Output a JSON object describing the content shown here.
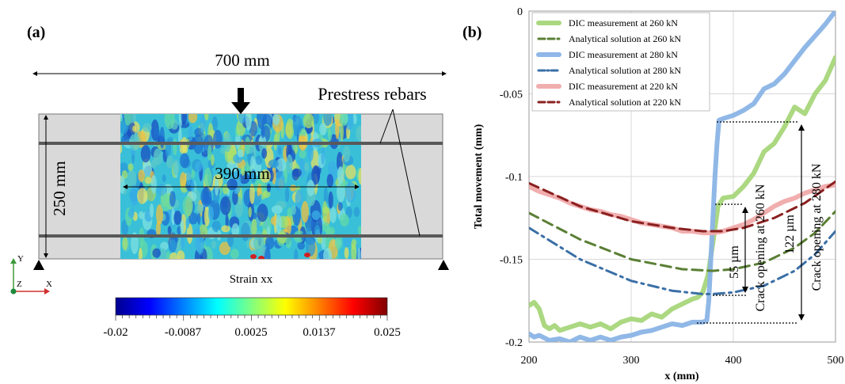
{
  "panel_a": {
    "label": "(a)",
    "width_label": "700 mm",
    "height_label": "250 mm",
    "inner_width_label": "390 mm",
    "rebar_label": "Prestress rebars",
    "colorbar_title": "Strain xx",
    "colorbar_ticks": [
      "-0.02",
      "-0.0087",
      "0.0025",
      "0.0137",
      "0.025"
    ],
    "axis_y": "Y",
    "axis_z": "Z",
    "axis_x": "X",
    "colors": {
      "beam": "#d9d9d9",
      "rebar": "#595959",
      "strain_base": "#39c0d8",
      "colorbar": [
        "#00008f",
        "#0000ff",
        "#0080ff",
        "#00ffff",
        "#80ff80",
        "#ffff00",
        "#ff8000",
        "#ff0000",
        "#800000"
      ]
    }
  },
  "panel_b": {
    "label": "(b)",
    "annotations": {
      "crack260_value": "55 µm",
      "crack260_text": "Crack opening at 260 kN",
      "crack280_value": "122 µm",
      "crack280_text": "Crack opening at 280 kN"
    }
  },
  "chart_data": {
    "type": "line",
    "xlabel": "x (mm)",
    "ylabel": "Total movement (mm)",
    "xlim": [
      200,
      500
    ],
    "ylim": [
      -0.2,
      0
    ],
    "xticks": [
      "200",
      "300",
      "400",
      "500"
    ],
    "yticks": [
      "0",
      "-0.05",
      "-0.1",
      "-0.15",
      "-0.2"
    ],
    "grid": true,
    "legend_position": "top-left",
    "series": [
      {
        "name": "DIC measurement at 260 kN",
        "color": "#a6d67a",
        "style": "thick",
        "x": [
          200,
          205,
          210,
          215,
          220,
          225,
          230,
          240,
          250,
          260,
          270,
          280,
          290,
          300,
          310,
          320,
          330,
          340,
          350,
          360,
          365,
          370,
          375,
          380,
          385,
          390,
          400,
          410,
          420,
          430,
          440,
          450,
          460,
          470,
          480,
          490,
          500
        ],
        "y": [
          -0.178,
          -0.176,
          -0.18,
          -0.19,
          -0.192,
          -0.19,
          -0.193,
          -0.191,
          -0.189,
          -0.191,
          -0.189,
          -0.192,
          -0.188,
          -0.186,
          -0.187,
          -0.183,
          -0.185,
          -0.18,
          -0.177,
          -0.174,
          -0.173,
          -0.17,
          -0.16,
          -0.14,
          -0.118,
          -0.113,
          -0.112,
          -0.106,
          -0.098,
          -0.085,
          -0.08,
          -0.07,
          -0.058,
          -0.062,
          -0.05,
          -0.042,
          -0.028
        ]
      },
      {
        "name": "Analytical solution at 260 kN",
        "color": "#5a7f34",
        "style": "dash",
        "x": [
          200,
          250,
          300,
          350,
          380,
          400,
          430,
          460,
          480,
          500
        ],
        "y": [
          -0.122,
          -0.138,
          -0.15,
          -0.156,
          -0.157,
          -0.156,
          -0.152,
          -0.143,
          -0.134,
          -0.121
        ]
      },
      {
        "name": "DIC measurement at 280 kN",
        "color": "#8ab4e6",
        "style": "thick",
        "x": [
          200,
          205,
          210,
          220,
          230,
          240,
          250,
          260,
          270,
          280,
          290,
          300,
          310,
          320,
          330,
          340,
          350,
          360,
          365,
          370,
          374,
          376,
          378,
          380,
          382,
          384,
          386,
          390,
          400,
          410,
          420,
          430,
          440,
          450,
          460,
          470,
          480,
          490,
          500
        ],
        "y": [
          -0.195,
          -0.197,
          -0.196,
          -0.199,
          -0.198,
          -0.2,
          -0.197,
          -0.199,
          -0.197,
          -0.199,
          -0.197,
          -0.196,
          -0.194,
          -0.193,
          -0.191,
          -0.189,
          -0.19,
          -0.188,
          -0.188,
          -0.188,
          -0.187,
          -0.175,
          -0.15,
          -0.125,
          -0.1,
          -0.08,
          -0.066,
          -0.065,
          -0.063,
          -0.06,
          -0.056,
          -0.047,
          -0.044,
          -0.038,
          -0.03,
          -0.022,
          -0.015,
          -0.008,
          0.0
        ]
      },
      {
        "name": "Analytical solution at 280 kN",
        "color": "#3a6fa6",
        "style": "dashdot",
        "x": [
          200,
          250,
          300,
          340,
          370,
          380,
          400,
          430,
          460,
          480,
          500
        ],
        "y": [
          -0.131,
          -0.15,
          -0.163,
          -0.169,
          -0.171,
          -0.171,
          -0.17,
          -0.166,
          -0.157,
          -0.147,
          -0.133
        ]
      },
      {
        "name": "DIC measurement at 220 kN",
        "color": "#f0aaaa",
        "style": "thick",
        "x": [
          200,
          210,
          220,
          230,
          240,
          250,
          260,
          270,
          280,
          290,
          300,
          310,
          320,
          330,
          340,
          350,
          360,
          370,
          380,
          390,
          400,
          410,
          420,
          430,
          440,
          450,
          460,
          470,
          480,
          490,
          500
        ],
        "y": [
          -0.106,
          -0.109,
          -0.111,
          -0.113,
          -0.116,
          -0.118,
          -0.12,
          -0.121,
          -0.123,
          -0.124,
          -0.126,
          -0.128,
          -0.129,
          -0.13,
          -0.131,
          -0.133,
          -0.133,
          -0.134,
          -0.134,
          -0.133,
          -0.131,
          -0.129,
          -0.126,
          -0.122,
          -0.118,
          -0.115,
          -0.113,
          -0.11,
          -0.108,
          -0.106,
          -0.105
        ]
      },
      {
        "name": "Analytical solution at 220 kN",
        "color": "#8a2020",
        "style": "dash",
        "x": [
          200,
          250,
          300,
          340,
          370,
          390,
          410,
          440,
          470,
          500
        ],
        "y": [
          -0.104,
          -0.118,
          -0.127,
          -0.131,
          -0.133,
          -0.133,
          -0.131,
          -0.125,
          -0.116,
          -0.103
        ]
      }
    ]
  }
}
